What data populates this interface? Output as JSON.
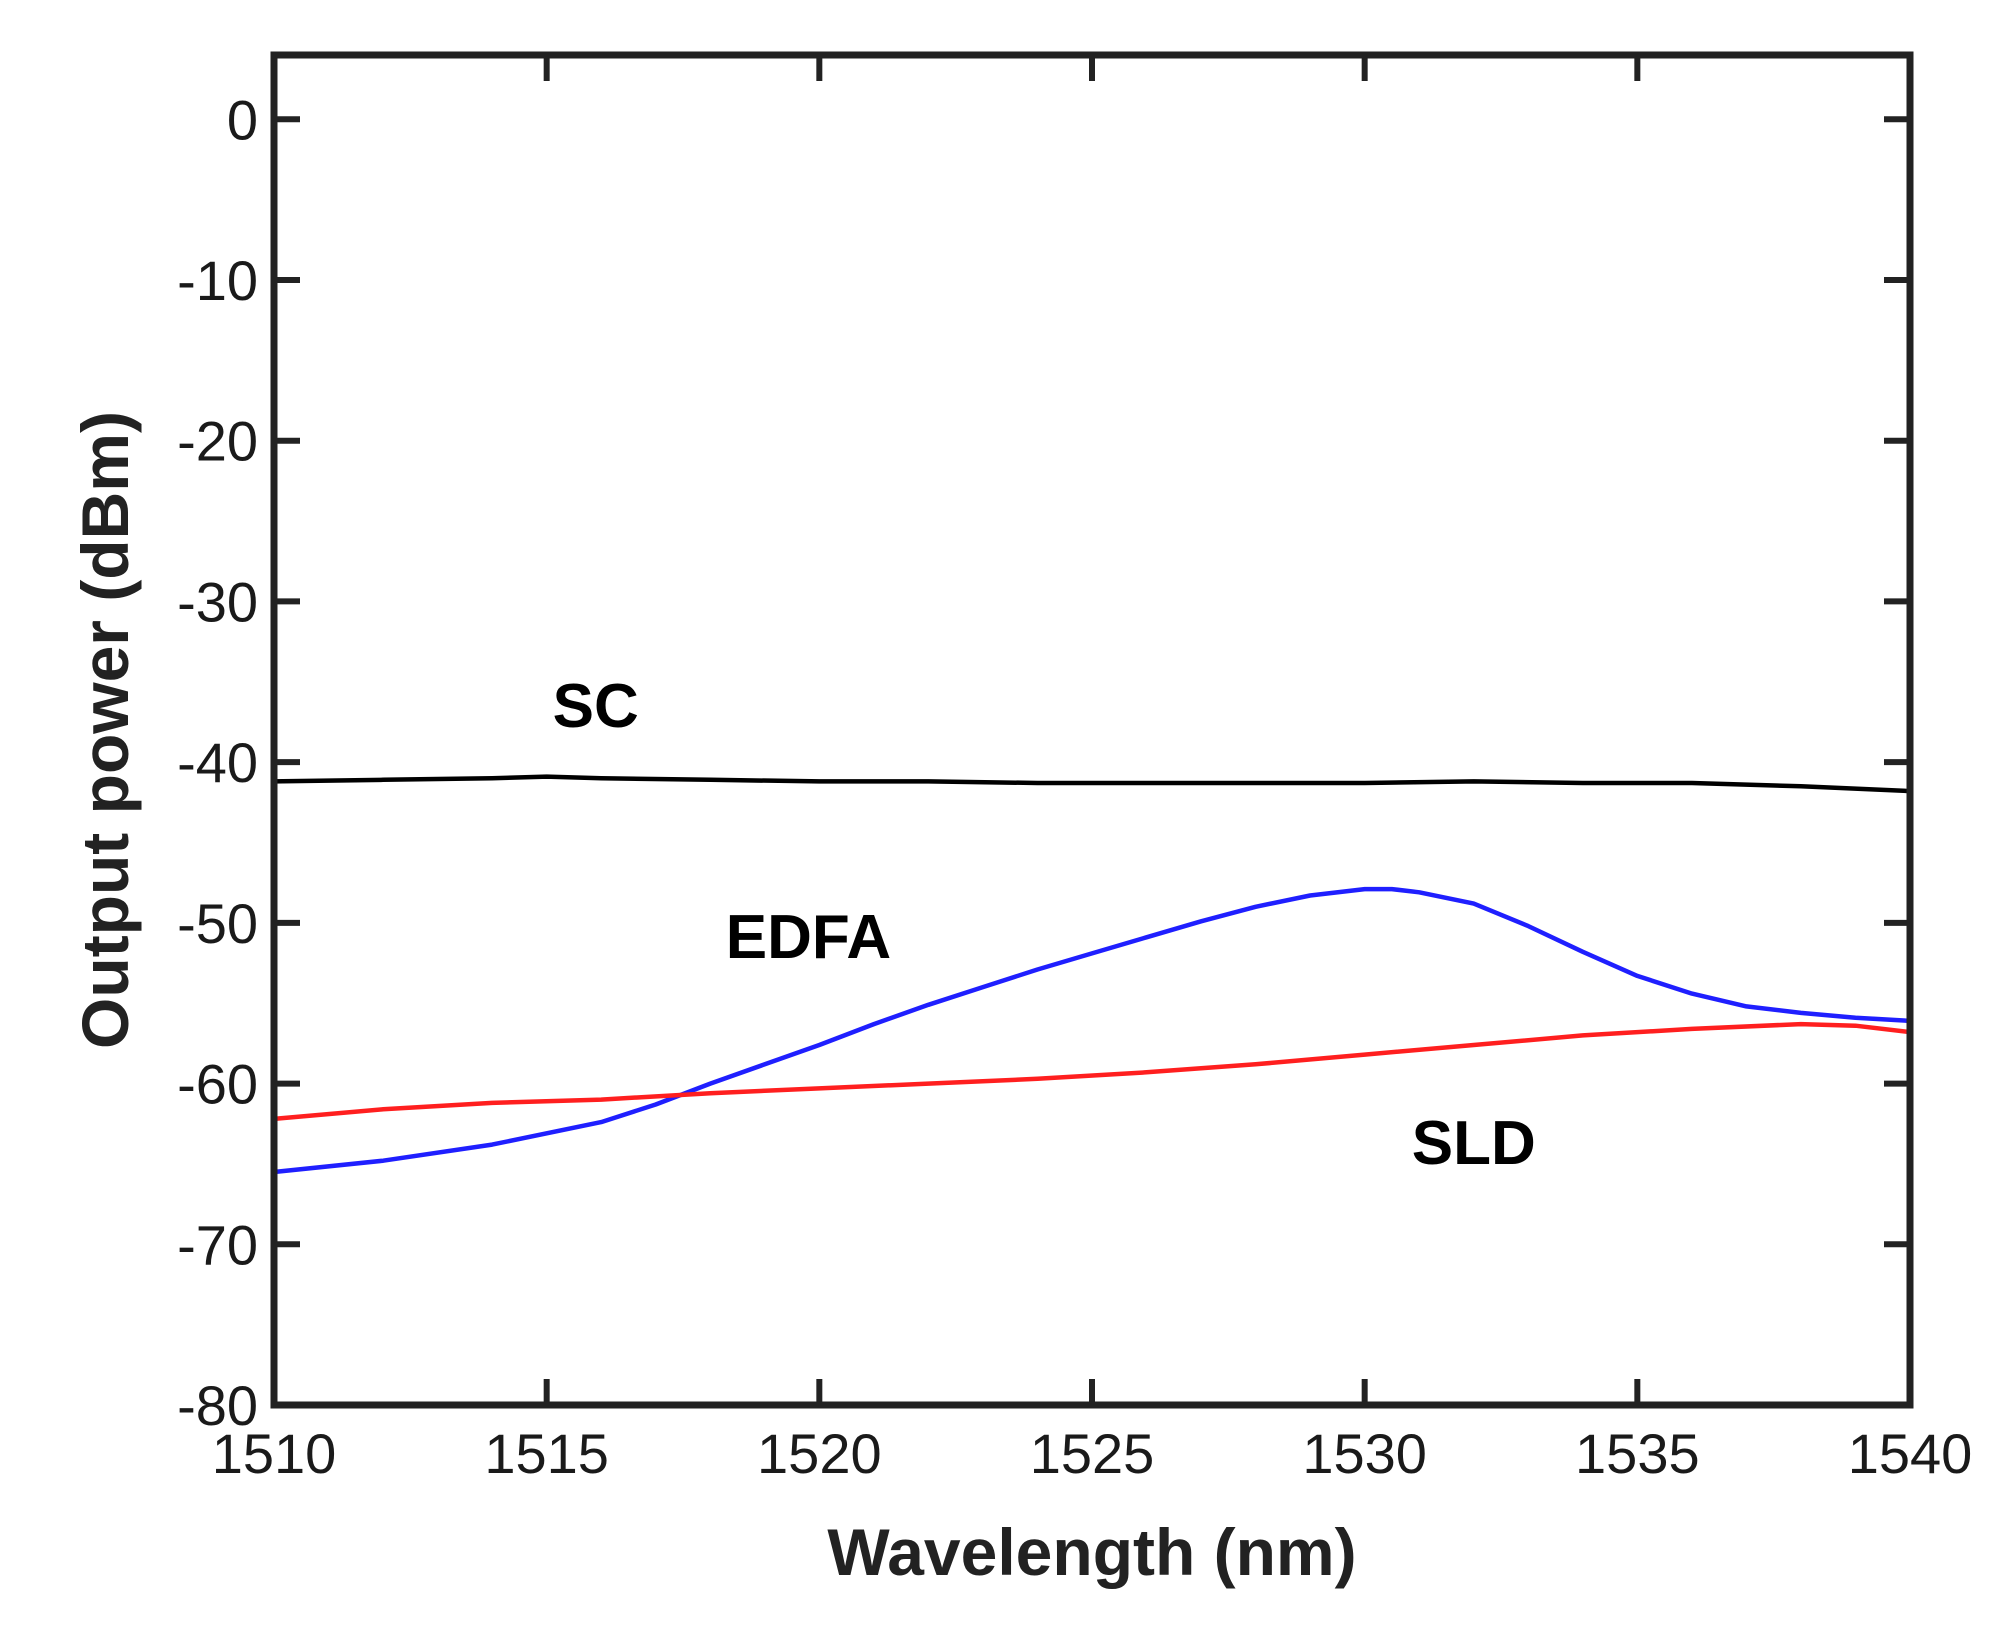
{
  "chart_data": {
    "type": "line",
    "title": "",
    "xlabel": "Wavelength (nm)",
    "ylabel": "Output power (dBm)",
    "xlim": [
      1510,
      1540
    ],
    "ylim": [
      -80,
      4
    ],
    "xticks": [
      1510,
      1515,
      1520,
      1525,
      1530,
      1535,
      1540
    ],
    "yticks": [
      0,
      -10,
      -20,
      -30,
      -40,
      -50,
      -60,
      -70,
      -80
    ],
    "xtick_labels": [
      "1510",
      "1515",
      "1520",
      "1525",
      "1530",
      "1535",
      "1540"
    ],
    "ytick_labels": [
      "0",
      "-10",
      "-20",
      "-30",
      "-40",
      "-50",
      "-60",
      "-70",
      "-80"
    ],
    "grid": false,
    "series": [
      {
        "name": "SC",
        "color": "#000000",
        "x": [
          1510,
          1512,
          1514,
          1515,
          1516,
          1518,
          1520,
          1522,
          1524,
          1526,
          1528,
          1530,
          1532,
          1534,
          1536,
          1538,
          1540
        ],
        "y": [
          -41.2,
          -41.1,
          -41.0,
          -40.9,
          -41.0,
          -41.1,
          -41.2,
          -41.2,
          -41.3,
          -41.3,
          -41.3,
          -41.3,
          -41.2,
          -41.3,
          -41.3,
          -41.5,
          -41.8
        ]
      },
      {
        "name": "EDFA",
        "color": "#1f1fff",
        "x": [
          1510,
          1512,
          1514,
          1516,
          1517,
          1518,
          1519,
          1520,
          1521,
          1522,
          1523,
          1524,
          1525,
          1526,
          1527,
          1528,
          1529,
          1530,
          1530.5,
          1531,
          1532,
          1533,
          1534,
          1535,
          1536,
          1537,
          1538,
          1539,
          1540
        ],
        "y": [
          -65.5,
          -64.8,
          -63.8,
          -62.4,
          -61.3,
          -60.0,
          -58.8,
          -57.6,
          -56.3,
          -55.1,
          -54.0,
          -52.9,
          -51.9,
          -50.9,
          -49.9,
          -49.0,
          -48.3,
          -47.9,
          -47.9,
          -48.1,
          -48.8,
          -50.2,
          -51.8,
          -53.3,
          -54.4,
          -55.2,
          -55.6,
          -55.9,
          -56.1
        ]
      },
      {
        "name": "SLD",
        "color": "#ff1f1f",
        "x": [
          1510,
          1512,
          1514,
          1516,
          1518,
          1520,
          1522,
          1524,
          1526,
          1528,
          1530,
          1532,
          1534,
          1536,
          1538,
          1539,
          1540
        ],
        "y": [
          -62.2,
          -61.6,
          -61.2,
          -61.0,
          -60.6,
          -60.3,
          -60.0,
          -59.7,
          -59.3,
          -58.8,
          -58.2,
          -57.6,
          -57.0,
          -56.6,
          -56.3,
          -56.4,
          -56.8
        ]
      }
    ],
    "annotations": [
      {
        "text": "SC",
        "x": 1515.9,
        "y": -37.8
      },
      {
        "text": "EDFA",
        "x": 1519.8,
        "y": -52.2
      },
      {
        "text": "SLD",
        "x": 1532.0,
        "y": -65.0
      }
    ]
  }
}
